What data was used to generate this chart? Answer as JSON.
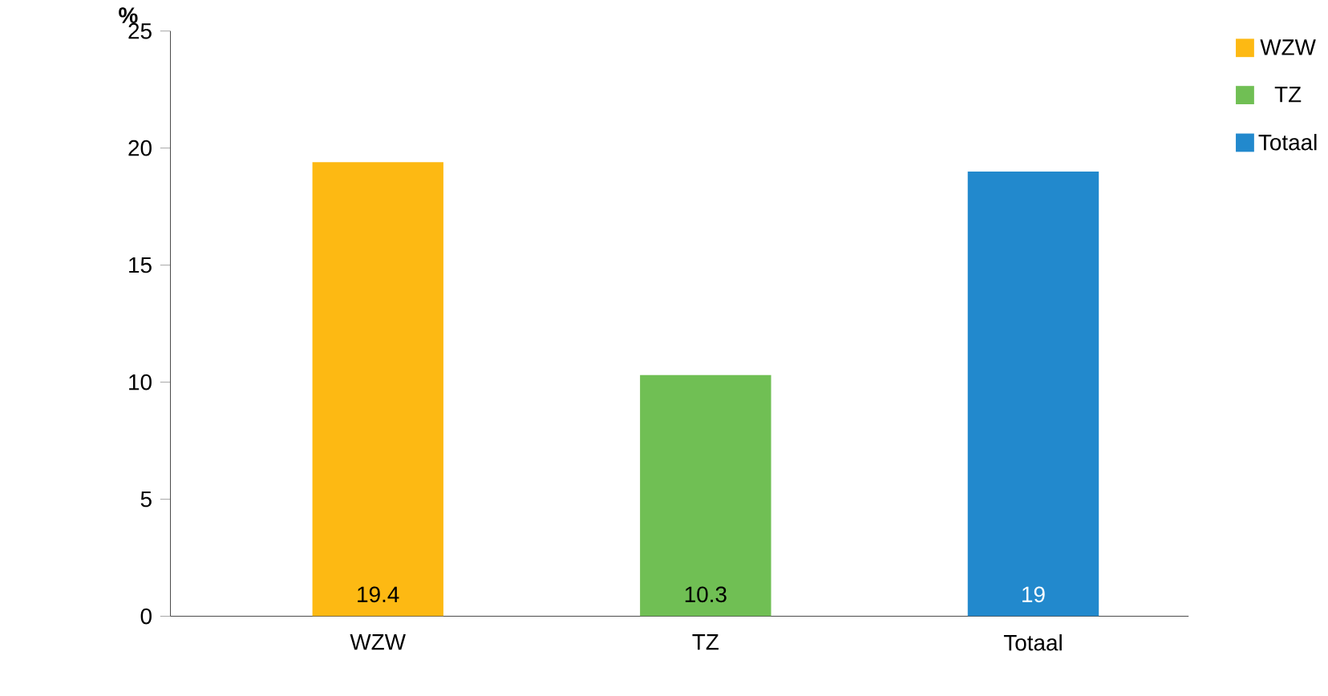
{
  "chart_data": {
    "type": "bar",
    "ylabel": "%",
    "categories": [
      "WZW",
      "TZ",
      "Totaal"
    ],
    "series": [
      {
        "name": "WZW",
        "color": "#fdb913",
        "values": [
          19.4,
          null,
          null
        ]
      },
      {
        "name": "TZ",
        "color": "#70bf54",
        "values": [
          null,
          10.3,
          null
        ]
      },
      {
        "name": "Totaal",
        "color": "#2289cd",
        "values": [
          null,
          null,
          19
        ]
      }
    ],
    "ylim": [
      0,
      25
    ],
    "yticks": [
      0,
      5,
      10,
      15,
      20,
      25
    ],
    "grid": false,
    "legend": "top right",
    "data_labels": true
  }
}
